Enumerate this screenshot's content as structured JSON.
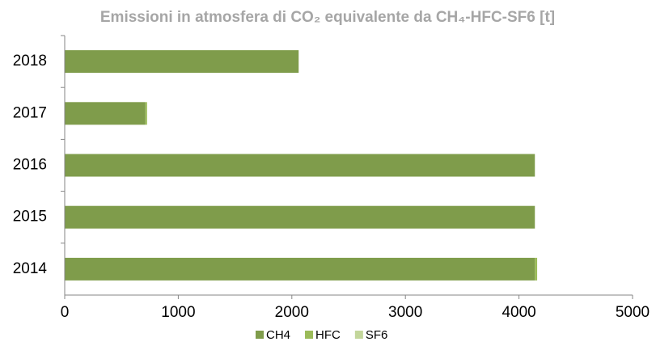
{
  "chart_data": {
    "type": "bar",
    "orientation": "horizontal",
    "stacked": true,
    "title": "Emissioni in atmosfera di CO₂ equivalente da CH₄-HFC-SF6 [t]",
    "categories": [
      "2018",
      "2017",
      "2016",
      "2015",
      "2014"
    ],
    "series": [
      {
        "name": "CH4",
        "color": "#7f9c4b",
        "values": [
          2060,
          710,
          4140,
          4140,
          4140
        ]
      },
      {
        "name": "HFC",
        "color": "#9bbb59",
        "values": [
          0,
          15,
          0,
          0,
          20
        ]
      },
      {
        "name": "SF6",
        "color": "#c3d69b",
        "values": [
          0,
          0,
          0,
          0,
          0
        ]
      }
    ],
    "xlim": [
      0,
      5000
    ],
    "xticks": [
      0,
      1000,
      2000,
      3000,
      4000,
      5000
    ],
    "legend": "bottom"
  }
}
